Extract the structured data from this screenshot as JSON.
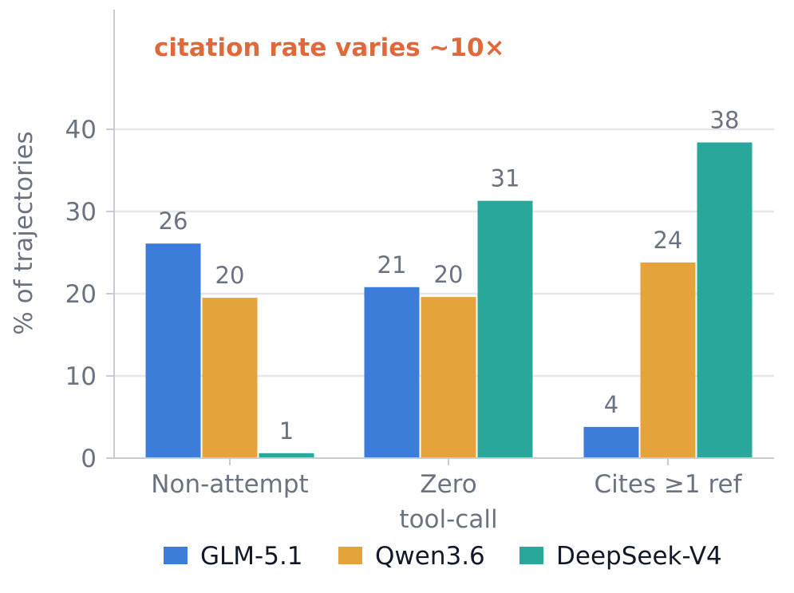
{
  "chart_data": {
    "type": "bar",
    "categories": [
      [
        "Non-attempt"
      ],
      [
        "Zero",
        "tool-call"
      ],
      [
        "Cites ≥1 ref"
      ]
    ],
    "series": [
      {
        "name": "GLM-5.1",
        "color": "#3b7dd8",
        "values": [
          26.1,
          20.8,
          3.8
        ]
      },
      {
        "name": "Qwen3.6",
        "color": "#e5a33b",
        "values": [
          19.5,
          19.6,
          23.8
        ]
      },
      {
        "name": "DeepSeek-V4",
        "color": "#2aa79b",
        "values": [
          0.6,
          31.3,
          38.4
        ]
      }
    ],
    "data_labels": [
      [
        "26",
        "21",
        "4"
      ],
      [
        "20",
        "20",
        "24"
      ],
      [
        "1",
        "31",
        "38"
      ]
    ],
    "ylabel": "% of trajectories",
    "yticks": [
      0,
      10,
      20,
      30,
      40
    ],
    "ylim": [
      0,
      45
    ],
    "grid": "horizontal",
    "legend_position": "bottom",
    "annotation": {
      "text": "citation rate varies ∼10×",
      "color": "#e0693c"
    }
  }
}
